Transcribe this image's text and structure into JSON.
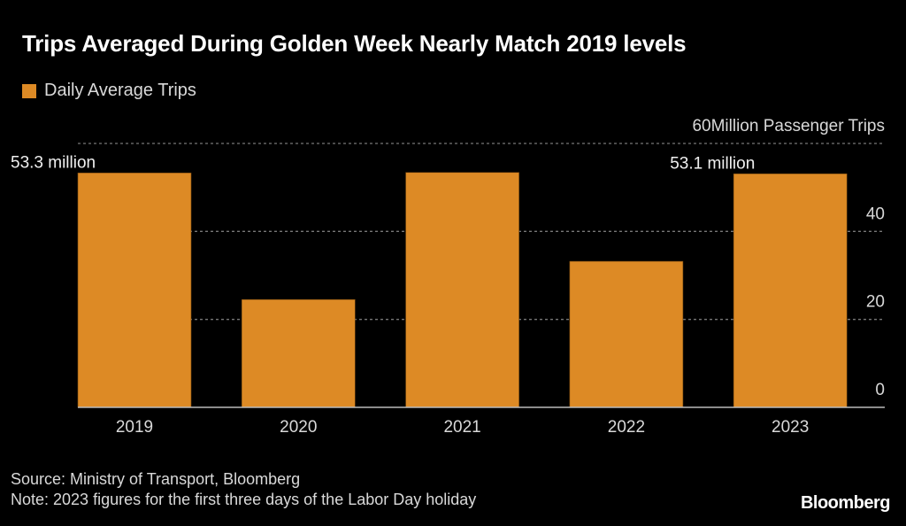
{
  "title": "Trips Averaged During Golden Week Nearly Match 2019 levels",
  "legend": [
    {
      "label": "Daily Average Trips",
      "color": "#dd8a25"
    }
  ],
  "footer": {
    "source": "Source: Ministry of Transport, Bloomberg",
    "note": "Note: 2023 figures for the first three days of the Labor Day holiday"
  },
  "brand": "Bloomberg",
  "colors": {
    "bar": "#dd8a25",
    "background": "#000000",
    "grid": "#777777",
    "axis": "#bbbbbb",
    "text": "#d9d9d9"
  },
  "chart_data": {
    "type": "bar",
    "title": "Trips Averaged During Golden Week Nearly Match 2019 levels",
    "xlabel": "",
    "ylabel": "Million Passenger Trips",
    "categories": [
      "2019",
      "2020",
      "2021",
      "2022",
      "2023"
    ],
    "series": [
      {
        "name": "Daily Average Trips",
        "values": [
          53.3,
          24.5,
          53.4,
          33.2,
          53.1
        ]
      }
    ],
    "ylim": [
      0,
      60
    ],
    "yticks": [
      0,
      20,
      40,
      60
    ],
    "ytick_labels": [
      "0",
      "20",
      "40",
      "60Million Passenger Trips"
    ],
    "y_axis_side": "right",
    "grid": true,
    "legend_position": "top-left",
    "annotations": [
      {
        "category": "2019",
        "text": "53.3 million"
      },
      {
        "category": "2023",
        "text": "53.1 million"
      }
    ]
  }
}
